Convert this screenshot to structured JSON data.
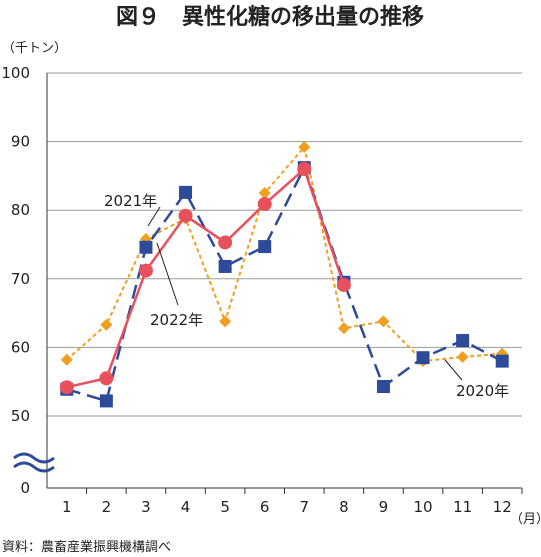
{
  "title": "図９　異性化糖の移出量の推移",
  "source": "資料：農畜産業振興機構調べ",
  "chart_data": {
    "type": "line",
    "ylabel": "（千トン）",
    "xlabel": "（月）",
    "x": [
      1,
      2,
      3,
      4,
      5,
      6,
      7,
      8,
      9,
      10,
      11,
      12
    ],
    "y_ticks": [
      0,
      50,
      60,
      70,
      80,
      90,
      100
    ],
    "ylim": [
      0,
      100
    ],
    "axis_break": true,
    "grid": true,
    "series": [
      {
        "name": "2020年",
        "color": "#f0a020",
        "dash": "dotted",
        "marker": "diamond",
        "values": [
          58.2,
          63.3,
          75.8,
          78.8,
          63.8,
          82.5,
          89.2,
          62.8,
          63.8,
          58.0,
          58.6,
          59.1
        ]
      },
      {
        "name": "2021年",
        "color": "#2e4b9a",
        "dash": "dashed",
        "marker": "square",
        "values": [
          53.9,
          52.2,
          74.6,
          82.6,
          71.8,
          74.7,
          86.2,
          69.5,
          54.3,
          58.5,
          61.0,
          58.0
        ]
      },
      {
        "name": "2022年",
        "color": "#e8505b",
        "dash": "solid",
        "marker": "circle",
        "values": [
          54.2,
          55.5,
          71.2,
          79.2,
          75.3,
          80.9,
          86.0,
          69.1,
          null,
          null,
          null,
          null
        ]
      }
    ]
  }
}
